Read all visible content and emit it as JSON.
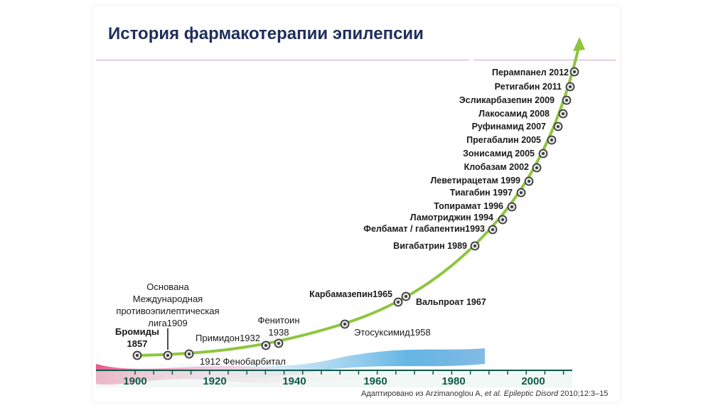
{
  "title": "История фармакотерапии эпилепсии",
  "source": {
    "prefix": "Адаптировано из Arzimanoglou A, ",
    "italic": "et al. Epileptic Disord",
    "suffix": " 2010;12:3–15"
  },
  "axis": {
    "ticks": [
      "1900",
      "1920",
      "1940",
      "1960",
      "1980",
      "2000"
    ],
    "range": [
      1900,
      2012
    ]
  },
  "colors": {
    "curve": "#8dc63f",
    "title": "#1f2f5a",
    "axis_text": "#0e5a4a",
    "marker": "#3a3a3a"
  },
  "events": [
    {
      "label": "Бромиды 1857",
      "lines": [
        "Бромиды",
        "1857"
      ],
      "bold": true
    },
    {
      "label": "Основана Международная противоэпилептическая лига1909",
      "lines": [
        "Основана",
        "Международная",
        "противоэпилептическая",
        "лига1909"
      ],
      "bold": false
    },
    {
      "label": "1912 Фенобарбитал",
      "lines": [
        "1912 Фенобарбитал"
      ],
      "bold": false
    },
    {
      "label": "Примидон1932",
      "lines": [
        "Примидон1932"
      ],
      "bold": false
    },
    {
      "label": "Фенитоин 1938",
      "lines": [
        "Фенитоин",
        "1938"
      ],
      "bold": false
    },
    {
      "label": "Этосуксимид1958",
      "lines": [
        "Этосуксимид1958"
      ],
      "bold": false
    },
    {
      "label": "Карбамазепин1965",
      "lines": [
        "Карбамазепин1965"
      ],
      "bold": true
    },
    {
      "label": "Вальпроат 1967",
      "lines": [
        "Вальпроат 1967"
      ],
      "bold": true
    },
    {
      "label": "Вигабатрин 1989",
      "lines": [
        "Вигабатрин 1989"
      ],
      "bold": true
    },
    {
      "label": "Фелбамат / габапентин1993",
      "lines": [
        "Фелбамат / габапентин1993"
      ],
      "bold": true
    },
    {
      "label": "Ламотриджин 1994",
      "lines": [
        "Ламотриджин 1994"
      ],
      "bold": true
    },
    {
      "label": "Топирамат 1996",
      "lines": [
        "Топирамат 1996"
      ],
      "bold": true
    },
    {
      "label": "Тиагабин 1997",
      "lines": [
        "Тиагабин 1997"
      ],
      "bold": true
    },
    {
      "label": "Леветирацетам 1999",
      "lines": [
        "Леветирацетам 1999"
      ],
      "bold": true
    },
    {
      "label": "Клобазам 2002",
      "lines": [
        "Клобазам 2002"
      ],
      "bold": true
    },
    {
      "label": "Зонисамид 2005",
      "lines": [
        "Зонисамид 2005"
      ],
      "bold": true
    },
    {
      "label": "Прегабалин 2005",
      "lines": [
        "Прегабалин 2005"
      ],
      "bold": true
    },
    {
      "label": "Руфинамид 2007",
      "lines": [
        "Руфинамид 2007"
      ],
      "bold": true
    },
    {
      "label": "Лакосамид 2008",
      "lines": [
        "Лакосамид 2008"
      ],
      "bold": true
    },
    {
      "label": "Эсликарбазепин 2009",
      "lines": [
        "Эсликарбазепин 2009"
      ],
      "bold": true
    },
    {
      "label": "Ретигабин 2011",
      "lines": [
        "Ретигабин 2011"
      ],
      "bold": true
    },
    {
      "label": "Перампанел 2012",
      "lines": [
        "Перампанел 2012"
      ],
      "bold": true
    }
  ]
}
